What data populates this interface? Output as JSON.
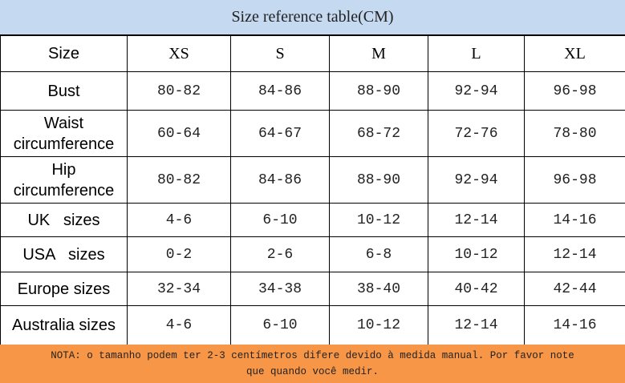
{
  "title": "Size reference table(CM)",
  "table": {
    "header": [
      "Size",
      "XS",
      "S",
      "M",
      "L",
      "XL"
    ],
    "rows": [
      [
        "Bust",
        "80-82",
        "84-86",
        "88-90",
        "92-94",
        "96-98"
      ],
      [
        "Waist circumference",
        "60-64",
        "64-67",
        "68-72",
        "72-76",
        "78-80"
      ],
      [
        "Hip circumference",
        "80-82",
        "84-86",
        "88-90",
        "92-94",
        "96-98"
      ],
      [
        "UK   sizes",
        "4-6",
        "6-10",
        "10-12",
        "12-14",
        "14-16"
      ],
      [
        "USA   sizes",
        "0-2",
        "2-6",
        "6-8",
        "10-12",
        "12-14"
      ],
      [
        "Europe sizes",
        "32-34",
        "34-38",
        "38-40",
        "40-42",
        "42-44"
      ],
      [
        "Australia sizes",
        "4-6",
        "6-10",
        "10-12",
        "12-14",
        "14-16"
      ]
    ]
  },
  "note": "NOTA: o tamanho podem ter 2-3 centímetros difere devido à medida manual. Por favor note que quando você medir."
}
